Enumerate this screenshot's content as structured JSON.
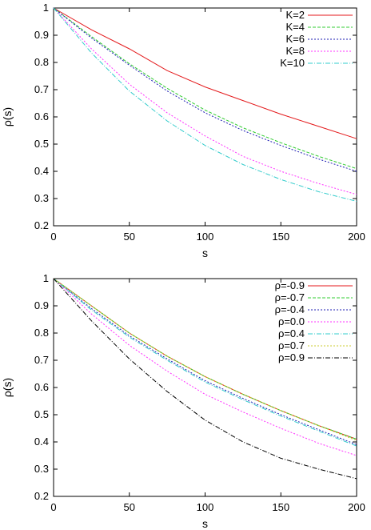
{
  "chart_data": [
    {
      "type": "line",
      "xlabel": "s",
      "ylabel": "ρ(s)",
      "xlim": [
        0,
        200
      ],
      "ylim": [
        0.2,
        1
      ],
      "xticks": [
        "0",
        "50",
        "100",
        "150",
        "200"
      ],
      "yticks": [
        "0.2",
        "0.3",
        "0.4",
        "0.5",
        "0.6",
        "0.7",
        "0.8",
        "0.9",
        "1"
      ],
      "grid": false,
      "legend_position": "top-right",
      "x": [
        0,
        25,
        50,
        75,
        100,
        125,
        150,
        175,
        200
      ],
      "series": [
        {
          "name": "K=2",
          "color": "#e41a1c",
          "dash": "solid",
          "values": [
            1.0,
            0.92,
            0.85,
            0.77,
            0.71,
            0.66,
            0.61,
            0.565,
            0.52
          ]
        },
        {
          "name": "K=4",
          "color": "#33cc33",
          "dash": "dash",
          "values": [
            1.0,
            0.895,
            0.795,
            0.705,
            0.625,
            0.56,
            0.505,
            0.455,
            0.41
          ]
        },
        {
          "name": "K=6",
          "color": "#1f1fb4",
          "dash": "dot",
          "values": [
            1.0,
            0.89,
            0.79,
            0.695,
            0.615,
            0.55,
            0.495,
            0.445,
            0.4
          ]
        },
        {
          "name": "K=8",
          "color": "#ff33ff",
          "dash": "dot",
          "values": [
            1.0,
            0.85,
            0.72,
            0.615,
            0.53,
            0.455,
            0.4,
            0.355,
            0.315
          ]
        },
        {
          "name": "K=10",
          "color": "#33cccc",
          "dash": "dashdot",
          "values": [
            1.0,
            0.835,
            0.695,
            0.585,
            0.495,
            0.425,
            0.37,
            0.325,
            0.29
          ]
        }
      ]
    },
    {
      "type": "line",
      "xlabel": "s",
      "ylabel": "ρ(s)",
      "xlim": [
        0,
        200
      ],
      "ylim": [
        0.2,
        1
      ],
      "xticks": [
        "0",
        "50",
        "100",
        "150",
        "200"
      ],
      "yticks": [
        "0.2",
        "0.3",
        "0.4",
        "0.5",
        "0.6",
        "0.7",
        "0.8",
        "0.9",
        "1"
      ],
      "grid": false,
      "legend_position": "top-right",
      "x": [
        0,
        25,
        50,
        75,
        100,
        125,
        150,
        175,
        200
      ],
      "series": [
        {
          "name": "ρ=-0.9",
          "color": "#e41a1c",
          "dash": "solid",
          "values": [
            1.0,
            0.9,
            0.8,
            0.715,
            0.64,
            0.575,
            0.515,
            0.46,
            0.41
          ]
        },
        {
          "name": "ρ=-0.7",
          "color": "#33cc33",
          "dash": "dash",
          "values": [
            1.0,
            0.9,
            0.8,
            0.715,
            0.64,
            0.575,
            0.515,
            0.46,
            0.41
          ]
        },
        {
          "name": "ρ=-0.4",
          "color": "#1f1fb4",
          "dash": "dot",
          "values": [
            1.0,
            0.89,
            0.79,
            0.705,
            0.625,
            0.56,
            0.5,
            0.445,
            0.39
          ]
        },
        {
          "name": "ρ=0.0",
          "color": "#ff33ff",
          "dash": "dot",
          "values": [
            1.0,
            0.87,
            0.755,
            0.66,
            0.575,
            0.51,
            0.45,
            0.395,
            0.35
          ]
        },
        {
          "name": "ρ=0.4",
          "color": "#33cccc",
          "dash": "dashdot",
          "values": [
            1.0,
            0.885,
            0.785,
            0.7,
            0.62,
            0.555,
            0.495,
            0.44,
            0.385
          ]
        },
        {
          "name": "ρ=0.7",
          "color": "#cccc33",
          "dash": "dot",
          "values": [
            1.0,
            0.9,
            0.8,
            0.715,
            0.64,
            0.575,
            0.515,
            0.46,
            0.405
          ]
        },
        {
          "name": "ρ=0.9",
          "color": "#000000",
          "dash": "dashdot",
          "values": [
            1.0,
            0.845,
            0.705,
            0.585,
            0.48,
            0.4,
            0.34,
            0.3,
            0.265
          ]
        }
      ]
    }
  ]
}
